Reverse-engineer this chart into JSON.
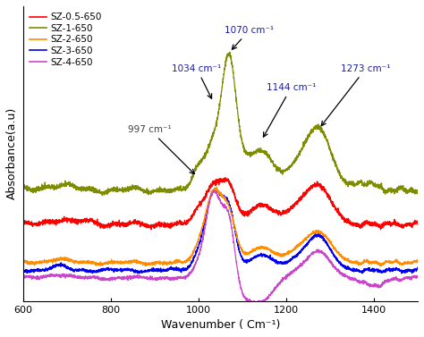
{
  "x_min": 600,
  "x_max": 1500,
  "xlabel": "Wavenumber ( Cm⁻¹)",
  "ylabel": "Absorbance(a.u)",
  "legend_labels": [
    "SZ-0.5-650",
    "SZ-1-650",
    "SZ-2-650",
    "SZ-3-650",
    "SZ-4-650"
  ],
  "colors": [
    "#ff0000",
    "#7d8c00",
    "#ff8c00",
    "#0000ee",
    "#cc44cc"
  ],
  "background_color": "#ffffff",
  "ylim": [
    -0.02,
    0.75
  ],
  "figsize": [
    4.74,
    3.77
  ],
  "dpi": 100
}
